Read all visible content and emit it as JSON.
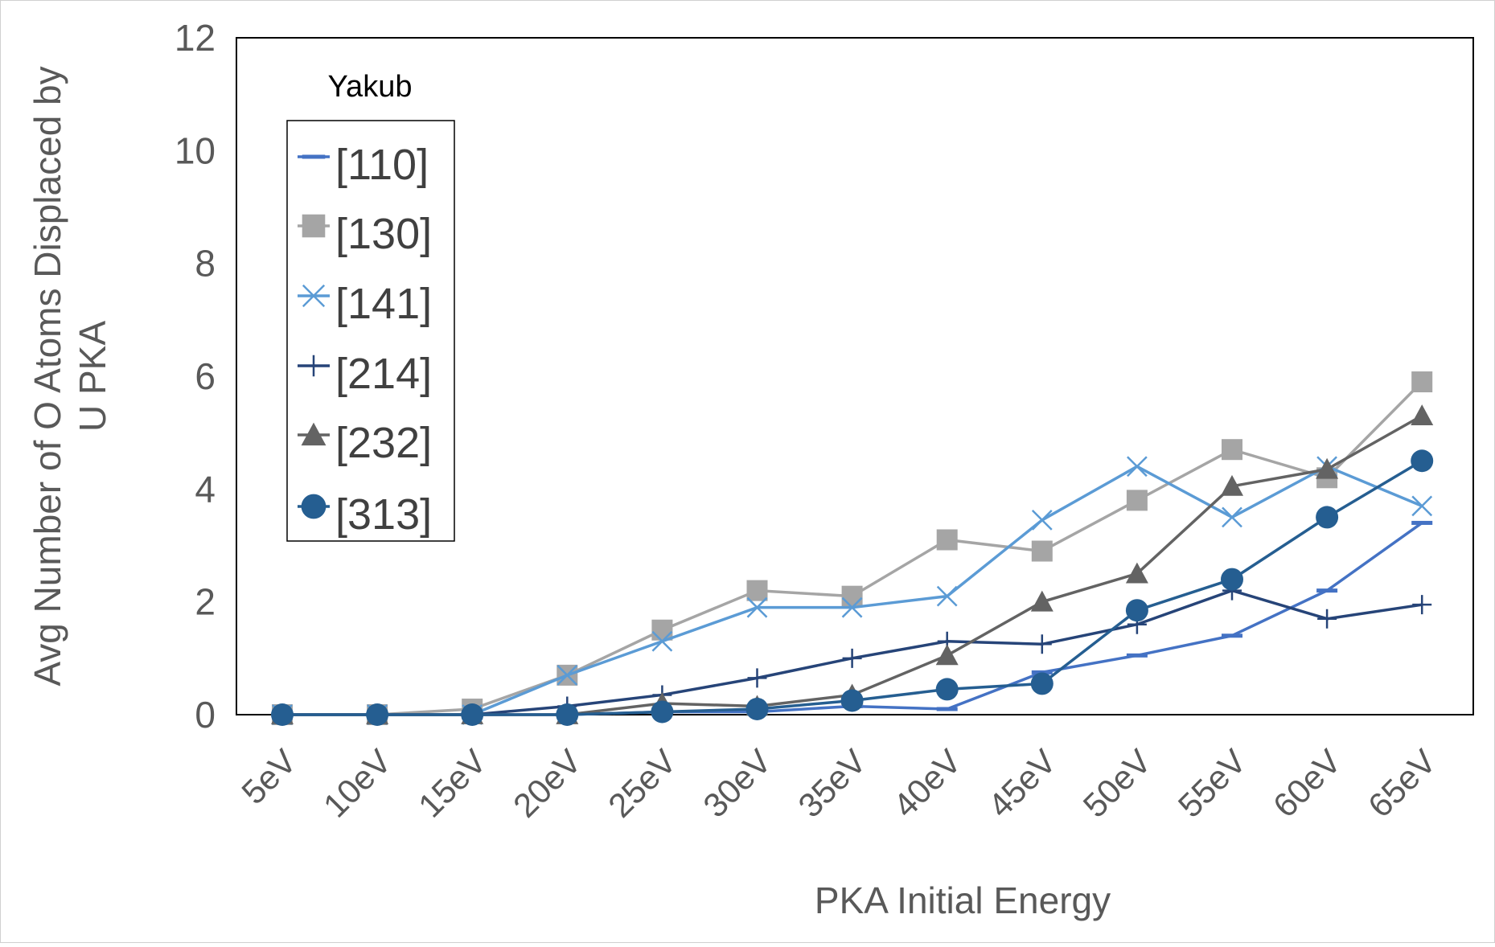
{
  "chart_data": {
    "type": "line",
    "title": "",
    "xlabel": "PKA Initial Energy",
    "ylabel": "Avg Number of O Atoms Displaced by U PKA",
    "ylabel_lines": [
      "Avg Number of O Atoms Displaced by",
      "U PKA"
    ],
    "ylim": [
      0,
      12
    ],
    "yticks": [
      0,
      2,
      4,
      6,
      8,
      10,
      12
    ],
    "grid": false,
    "legend_title": "Yakub",
    "legend_position": "top-left",
    "categories": [
      "5eV",
      "10eV",
      "15eV",
      "20eV",
      "25eV",
      "30eV",
      "35eV",
      "40eV",
      "45eV",
      "50eV",
      "55eV",
      "60eV",
      "65eV"
    ],
    "series": [
      {
        "name": "[110]",
        "color": "#4472C4",
        "marker": "dash",
        "values": [
          0,
          0,
          0,
          0,
          0.05,
          0.05,
          0.15,
          0.1,
          0.75,
          1.05,
          1.4,
          2.2,
          3.4
        ]
      },
      {
        "name": "[130]",
        "color": "#A5A5A5",
        "marker": "square",
        "values": [
          0,
          0,
          0.1,
          0.7,
          1.5,
          2.2,
          2.1,
          3.1,
          2.9,
          3.8,
          4.7,
          4.2,
          5.9
        ]
      },
      {
        "name": "[141]",
        "color": "#5B9BD5",
        "marker": "x",
        "values": [
          0,
          0,
          0,
          0.7,
          1.3,
          1.9,
          1.9,
          2.1,
          3.45,
          4.4,
          3.5,
          4.4,
          3.7
        ]
      },
      {
        "name": "[214]",
        "color": "#264478",
        "marker": "plus",
        "values": [
          0,
          0,
          0,
          0.15,
          0.35,
          0.65,
          1.0,
          1.3,
          1.25,
          1.6,
          2.2,
          1.7,
          1.95
        ]
      },
      {
        "name": "[232]",
        "color": "#636363",
        "marker": "triangle",
        "values": [
          0,
          0,
          0,
          0,
          0.2,
          0.15,
          0.35,
          1.05,
          2.0,
          2.5,
          4.05,
          4.35,
          5.3
        ]
      },
      {
        "name": "[313]",
        "color": "#255E91",
        "marker": "circle",
        "values": [
          0,
          0,
          0,
          0,
          0.05,
          0.1,
          0.25,
          0.45,
          0.55,
          1.85,
          2.4,
          3.5,
          4.5
        ]
      }
    ]
  }
}
